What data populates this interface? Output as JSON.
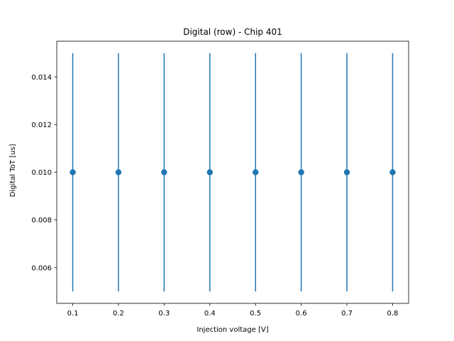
{
  "chart_data": {
    "type": "scatter",
    "title": "Digital (row) - Chip 401",
    "xlabel": "Injection voltage [V]",
    "ylabel": "Digital ToT [us]",
    "xlim": [
      0.065,
      0.835
    ],
    "ylim": [
      0.0045,
      0.0155
    ],
    "grid": false,
    "xticks": [
      0.1,
      0.2,
      0.3,
      0.4,
      0.5,
      0.6,
      0.7,
      0.8
    ],
    "xtick_labels": [
      "0.1",
      "0.2",
      "0.3",
      "0.4",
      "0.5",
      "0.6",
      "0.7",
      "0.8"
    ],
    "yticks": [
      0.006,
      0.008,
      0.01,
      0.012,
      0.014
    ],
    "ytick_labels": [
      "0.006",
      "0.008",
      "0.010",
      "0.012",
      "0.014"
    ],
    "series": [
      {
        "color": "#1f77b4",
        "x": [
          0.1,
          0.2,
          0.3,
          0.4,
          0.5,
          0.6,
          0.7,
          0.8
        ],
        "y": [
          0.01,
          0.01,
          0.01,
          0.01,
          0.01,
          0.01,
          0.01,
          0.01
        ],
        "yerr": [
          0.005,
          0.005,
          0.005,
          0.005,
          0.005,
          0.005,
          0.005,
          0.005
        ]
      }
    ]
  }
}
